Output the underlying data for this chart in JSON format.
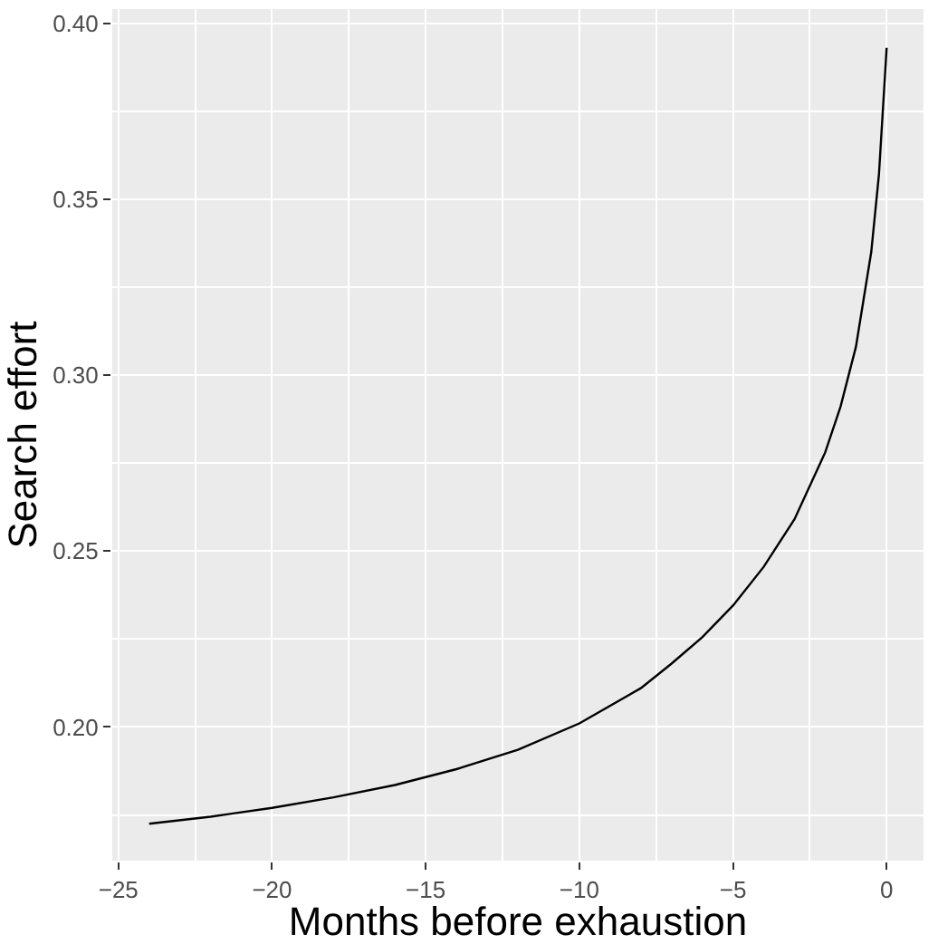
{
  "chart_data": {
    "type": "line",
    "xlabel": "Months before exhaustion",
    "ylabel": "Search effort",
    "x": [
      -24,
      -22,
      -20,
      -18,
      -16,
      -14,
      -12,
      -10,
      -8,
      -7,
      -6,
      -5,
      -4,
      -3,
      -2,
      -1.5,
      -1,
      -0.5,
      -0.25,
      0
    ],
    "series": [
      {
        "color": "#000000",
        "values": [
          0.1725,
          0.1745,
          0.177,
          0.18,
          0.1835,
          0.188,
          0.1935,
          0.201,
          0.211,
          0.218,
          0.2255,
          0.2345,
          0.2455,
          0.259,
          0.278,
          0.291,
          0.308,
          0.335,
          0.357,
          0.393
        ]
      }
    ],
    "xlim": [
      -25.2,
      1.2
    ],
    "ylim": [
      0.162,
      0.404
    ],
    "xticks": [
      {
        "value": -25,
        "label": "−25"
      },
      {
        "value": -20,
        "label": "−20"
      },
      {
        "value": -15,
        "label": "−15"
      },
      {
        "value": -10,
        "label": "−10"
      },
      {
        "value": -5,
        "label": "−5"
      },
      0
    ],
    "yticks": [
      {
        "value": 0.2,
        "label": "0.20"
      },
      0.25,
      {
        "value": 0.3,
        "label": "0.30"
      },
      0.35,
      {
        "value": 0.4,
        "label": "0.40"
      }
    ],
    "grid": true,
    "marker": "none",
    "line_style": "solid"
  }
}
